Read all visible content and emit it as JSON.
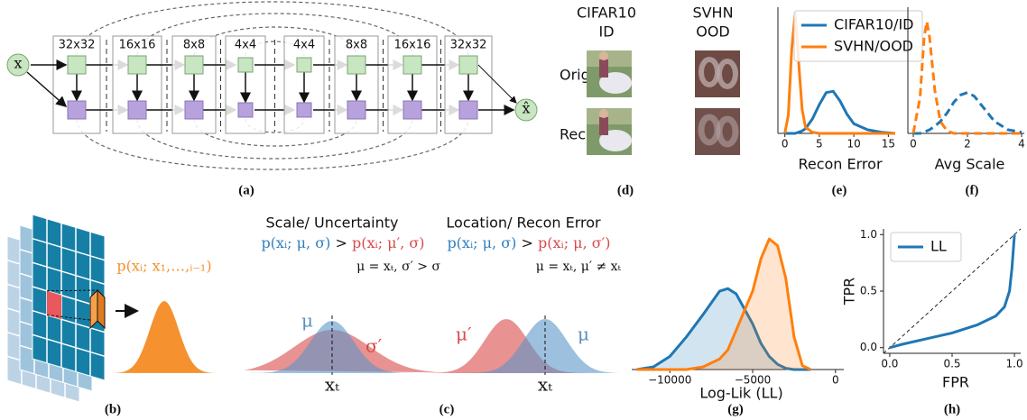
{
  "panel_a": {
    "caption": "(a)",
    "input": "x",
    "output": "x̂",
    "levels": [
      "32x32",
      "16x16",
      "8x8",
      "4x4",
      "4x4",
      "8x8",
      "16x16",
      "32x32"
    ]
  },
  "panel_b": {
    "caption": "(b)",
    "formula": "p(xᵢ; x₁,…,ᵢ₋₁)"
  },
  "panel_c": {
    "caption": "(c)",
    "left": {
      "title": "Scale/ Uncertainty",
      "lhs": "p(xᵢ; μ, σ)",
      "op": ">",
      "rhs": "p(xᵢ; μ′, σ)",
      "condition": "μ = xₜ, σ′ > σ",
      "blue_label": "μ",
      "red_label": "σ′",
      "x_label": "xₜ"
    },
    "right": {
      "title": "Location/ Recon Error",
      "lhs": "p(xᵢ; μ, σ)",
      "op": ">",
      "rhs": "p(xᵢ; μ, σ′)",
      "condition": "μ = xₜ, μ′ ≠ xₜ",
      "blue_label": "μ",
      "red_label": "μ′",
      "x_label": "xₜ"
    }
  },
  "panel_d": {
    "caption": "(d)",
    "columns": [
      [
        "CIFAR10",
        "ID"
      ],
      [
        "SVHN",
        "OOD"
      ]
    ],
    "rows": [
      "Orig",
      "Rec"
    ]
  },
  "chart_data": [
    {
      "type": "line",
      "caption": "(e)",
      "xlabel": "Recon Error",
      "x": [
        0,
        0.5,
        1,
        1.5,
        2,
        2.5,
        3,
        4,
        5,
        6,
        7,
        8,
        9,
        10,
        12,
        14,
        16
      ],
      "series": [
        {
          "name": "CIFAR10/ID",
          "color": "#1f77b4",
          "values": [
            0,
            0,
            0,
            0,
            0.01,
            0.02,
            0.04,
            0.12,
            0.24,
            0.34,
            0.35,
            0.27,
            0.16,
            0.08,
            0.03,
            0.01,
            0
          ]
        },
        {
          "name": "SVHN/OOD",
          "color": "#ff7f0e",
          "values": [
            0,
            0.15,
            0.7,
            1,
            0.6,
            0.2,
            0.05,
            0.01,
            0,
            0,
            0,
            0,
            0,
            0,
            0,
            0,
            0
          ]
        }
      ],
      "xlim": [
        -1,
        16
      ],
      "ylim": [
        0,
        1.05
      ],
      "xticks": [
        0,
        5,
        10,
        15
      ],
      "legend": "upper right"
    },
    {
      "type": "line",
      "caption": "(f)",
      "xlabel": "Avg Scale",
      "linestyle": "dashed",
      "x": [
        0,
        0.25,
        0.4,
        0.5,
        0.6,
        0.8,
        1,
        1.25,
        1.5,
        1.75,
        2,
        2.25,
        2.5,
        3,
        3.5,
        4
      ],
      "series": [
        {
          "color": "#1f77b4",
          "values": [
            0,
            0,
            0.01,
            0.02,
            0.03,
            0.06,
            0.1,
            0.17,
            0.26,
            0.32,
            0.34,
            0.31,
            0.24,
            0.1,
            0.03,
            0.01
          ]
        },
        {
          "color": "#ff7f0e",
          "values": [
            0,
            0.3,
            0.8,
            0.93,
            0.8,
            0.35,
            0.1,
            0.02,
            0,
            0,
            0,
            0,
            0,
            0,
            0,
            0
          ]
        }
      ],
      "xlim": [
        -0.2,
        4.1
      ],
      "ylim": [
        0,
        1.05
      ],
      "xticks": [
        0,
        2,
        4
      ]
    },
    {
      "type": "area",
      "caption": "(g)",
      "xlabel": "Log-Lik (LL)",
      "x": [
        -12000,
        -11000,
        -10000,
        -9000,
        -8000,
        -7000,
        -6500,
        -6000,
        -5000,
        -4500,
        -4000,
        -3500,
        -3000,
        -2500,
        -2000,
        -1500
      ],
      "series": [
        {
          "color": "#1f77b4",
          "values": [
            0,
            0.02,
            0.1,
            0.25,
            0.42,
            0.6,
            0.62,
            0.58,
            0.35,
            0.2,
            0.1,
            0.04,
            0.01,
            0,
            0,
            0
          ]
        },
        {
          "color": "#ff7f0e",
          "values": [
            0,
            0,
            0,
            0,
            0.02,
            0.08,
            0.15,
            0.3,
            0.6,
            0.85,
            1,
            0.95,
            0.7,
            0.25,
            0.03,
            0
          ]
        }
      ],
      "xlim": [
        -12300,
        500
      ],
      "ylim": [
        0,
        1.05
      ],
      "xticks": [
        {
          "value": -10000,
          "label": "−10000"
        },
        {
          "value": -5000,
          "label": "−5000"
        },
        0
      ]
    },
    {
      "type": "line",
      "caption": "(h)",
      "xlabel": "FPR",
      "ylabel": "TPR",
      "diagonal": true,
      "x": [
        0,
        0.1,
        0.3,
        0.5,
        0.7,
        0.85,
        0.92,
        0.96,
        0.98,
        0.99,
        1
      ],
      "series": [
        {
          "name": "LL",
          "color": "#1f77b4",
          "values": [
            0,
            0.03,
            0.08,
            0.13,
            0.2,
            0.28,
            0.36,
            0.5,
            0.7,
            0.85,
            1
          ]
        }
      ],
      "xlim": [
        -0.05,
        1.05
      ],
      "ylim": [
        -0.05,
        1.05
      ],
      "xticks": [
        {
          "value": 0,
          "label": "0.0"
        },
        {
          "value": 0.5,
          "label": "0.5"
        },
        {
          "value": 1,
          "label": "1.0"
        }
      ],
      "yticks": [
        {
          "value": 0,
          "label": "0.0"
        },
        {
          "value": 0.5,
          "label": "0.5"
        },
        {
          "value": 1,
          "label": "1.0"
        }
      ],
      "legend": "upper left"
    }
  ]
}
